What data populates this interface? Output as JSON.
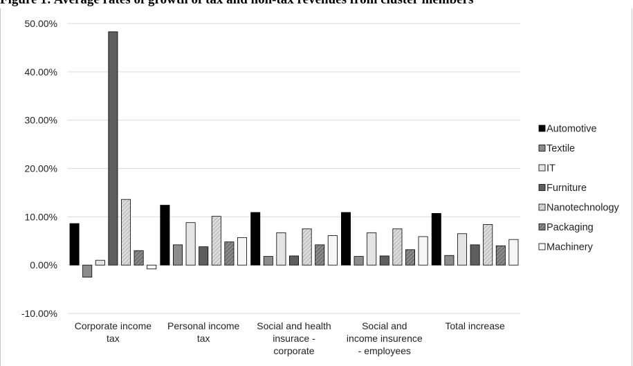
{
  "chart_data": {
    "type": "bar",
    "title": "Figure 1: Average rates of growth of tax and non-tax revenues from cluster members",
    "categories": [
      [
        "Corporate income",
        "tax"
      ],
      [
        "Personal income",
        "tax"
      ],
      [
        "Social and health",
        "insurace -",
        "corporate"
      ],
      [
        "Social and",
        "income insurence",
        "- employees"
      ],
      [
        "Total increase"
      ]
    ],
    "ylim": [
      -0.1,
      0.5
    ],
    "yticks": [
      "-10.00%",
      "0.00%",
      "10.00%",
      "20.00%",
      "30.00%",
      "40.00%",
      "50.00%"
    ],
    "grid": true,
    "legend_position": "right",
    "series": [
      {
        "name": "Automotive",
        "fill": "#000000",
        "values": [
          0.086,
          0.124,
          0.109,
          0.109,
          0.107
        ]
      },
      {
        "name": "Textile",
        "fill": "#8c8c8c",
        "values": [
          -0.025,
          0.042,
          0.018,
          0.018,
          0.02
        ]
      },
      {
        "name": "IT",
        "fill": "#e4e4e4",
        "values": [
          0.01,
          0.088,
          0.067,
          0.067,
          0.065
        ]
      },
      {
        "name": "Furniture",
        "fill": "#5e5e5e",
        "values": [
          0.483,
          0.038,
          0.019,
          0.019,
          0.042
        ]
      },
      {
        "name": "Nanotechnology",
        "fill": "url(#hatchLight)",
        "values": [
          0.136,
          0.101,
          0.075,
          0.075,
          0.084
        ]
      },
      {
        "name": "Packaging",
        "fill": "url(#hatchDark)",
        "values": [
          0.03,
          0.048,
          0.042,
          0.032,
          0.04
        ]
      },
      {
        "name": "Machinery",
        "fill": "#f6f6f6",
        "values": [
          -0.008,
          0.057,
          0.061,
          0.059,
          0.053
        ]
      }
    ]
  }
}
